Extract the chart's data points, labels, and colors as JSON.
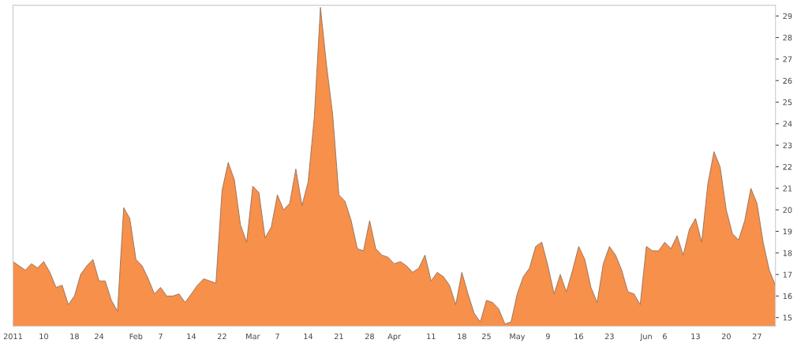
{
  "chart_data": {
    "type": "area",
    "categories": [
      "2011",
      null,
      null,
      null,
      null,
      "10",
      null,
      null,
      null,
      null,
      "18",
      null,
      null,
      null,
      "24",
      null,
      null,
      null,
      null,
      null,
      "Feb",
      null,
      null,
      null,
      "7",
      null,
      null,
      null,
      null,
      "14",
      null,
      null,
      null,
      null,
      "22",
      null,
      null,
      null,
      null,
      "Mar",
      null,
      null,
      null,
      "7",
      null,
      null,
      null,
      null,
      "14",
      null,
      null,
      null,
      null,
      "21",
      null,
      null,
      null,
      null,
      "28",
      null,
      null,
      null,
      "Apr",
      null,
      null,
      null,
      null,
      null,
      "11",
      null,
      null,
      null,
      null,
      "18",
      null,
      null,
      null,
      "25",
      null,
      null,
      null,
      null,
      "May",
      null,
      null,
      null,
      null,
      "9",
      null,
      null,
      null,
      null,
      "16",
      null,
      null,
      null,
      null,
      "23",
      null,
      null,
      null,
      null,
      null,
      "Jun",
      null,
      null,
      "6",
      null,
      null,
      null,
      null,
      "13",
      null,
      null,
      null,
      null,
      "20",
      null,
      null,
      null,
      null,
      "27",
      null,
      null,
      null
    ],
    "series": [
      {
        "color": "#f7904a",
        "values": [
          17.6,
          17.4,
          17.2,
          17.5,
          17.3,
          17.6,
          17.1,
          16.4,
          16.5,
          15.6,
          16.0,
          17.0,
          17.4,
          17.7,
          16.7,
          16.7,
          15.8,
          15.3,
          20.1,
          19.6,
          17.7,
          17.4,
          16.8,
          16.1,
          16.4,
          16.0,
          16.0,
          16.1,
          15.7,
          16.1,
          16.5,
          16.8,
          16.7,
          16.6,
          20.9,
          22.2,
          21.4,
          19.3,
          18.5,
          21.1,
          20.8,
          18.7,
          19.2,
          20.7,
          20.0,
          20.3,
          21.9,
          20.2,
          21.3,
          24.3,
          29.4,
          26.7,
          24.4,
          20.7,
          20.4,
          19.5,
          18.2,
          18.1,
          19.5,
          18.2,
          17.9,
          17.8,
          17.5,
          17.6,
          17.4,
          17.1,
          17.3,
          17.9,
          16.7,
          17.1,
          16.9,
          16.5,
          15.6,
          17.1,
          16.1,
          15.2,
          14.8,
          15.8,
          15.7,
          15.4,
          14.7,
          14.8,
          16.1,
          16.9,
          17.3,
          18.3,
          18.5,
          17.4,
          16.1,
          17.0,
          16.2,
          17.2,
          18.3,
          17.7,
          16.4,
          15.7,
          17.5,
          18.3,
          17.9,
          17.2,
          16.2,
          16.1,
          15.6,
          18.3,
          18.1,
          18.1,
          18.5,
          18.2,
          18.8,
          17.9,
          19.1,
          19.6,
          18.5,
          21.2,
          22.7,
          22.0,
          20.0,
          18.9,
          18.6,
          19.5,
          21.0,
          20.3,
          18.5,
          17.2,
          16.5
        ]
      }
    ],
    "ylim": [
      14.6,
      29.5
    ],
    "yticks": [
      15,
      16,
      17,
      18,
      19,
      20,
      21,
      22,
      23,
      24,
      25,
      26,
      27,
      28,
      29
    ],
    "grid": false,
    "legend": false
  }
}
